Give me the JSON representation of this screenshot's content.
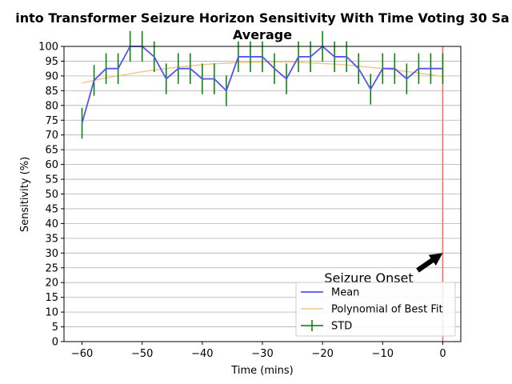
{
  "chart_data": {
    "type": "line",
    "title_line1": "into Transformer Seizure Horizon Sensitivity With Time Voting 30 Sa",
    "title_line2": "Average",
    "xlabel": "Time (mins)",
    "ylabel": "Sensitivity (%)",
    "xlim": [
      -63,
      3
    ],
    "ylim": [
      0,
      100
    ],
    "xticks": [
      -60,
      -50,
      -40,
      -30,
      -20,
      -10,
      0
    ],
    "yticks": [
      0,
      5,
      10,
      15,
      20,
      25,
      30,
      35,
      40,
      45,
      50,
      55,
      60,
      65,
      70,
      75,
      80,
      85,
      90,
      95,
      100
    ],
    "grid": "horizontal",
    "x": [
      -60,
      -58,
      -56,
      -54,
      -52,
      -50,
      -48,
      -46,
      -44,
      -42,
      -40,
      -38,
      -36,
      -34,
      -32,
      -30,
      -28,
      -26,
      -24,
      -22,
      -20,
      -18,
      -16,
      -14,
      -12,
      -10,
      -8,
      -6,
      -4,
      -2,
      0
    ],
    "series": [
      {
        "name": "Mean",
        "color": "#5555ee",
        "values": [
          74,
          88.5,
          92.5,
          92.5,
          100,
          100,
          96.5,
          89,
          92.5,
          92.5,
          89,
          89,
          85,
          96.5,
          96.5,
          96.5,
          92.5,
          89,
          96.5,
          96.5,
          100,
          96.5,
          96.5,
          92.5,
          85.5,
          92.5,
          92.5,
          89,
          92.5,
          92.5,
          92.5
        ]
      },
      {
        "name": "Polynomial of Best Fit",
        "color": "#f0c890",
        "values": [
          87.6,
          88.5,
          89.3,
          90.0,
          90.7,
          91.4,
          92.0,
          92.5,
          93.0,
          93.4,
          93.8,
          94.1,
          94.3,
          94.5,
          94.6,
          94.7,
          94.7,
          94.7,
          94.6,
          94.4,
          94.2,
          94.0,
          93.7,
          93.3,
          92.9,
          92.5,
          92.0,
          91.5,
          91.0,
          90.4,
          89.8
        ]
      },
      {
        "name": "STD",
        "color": "#008000",
        "values": [
          5.2,
          5.2,
          5.2,
          5.2,
          5.2,
          5.2,
          5.2,
          5.2,
          5.2,
          5.2,
          5.2,
          5.2,
          5.2,
          5.2,
          5.2,
          5.2,
          5.2,
          5.2,
          5.2,
          5.2,
          5.2,
          5.2,
          5.2,
          5.2,
          5.2,
          5.2,
          5.2,
          5.2,
          5.2,
          5.2,
          5.2
        ]
      }
    ],
    "onset_line": {
      "x": 0,
      "color": "#ff6666"
    },
    "annotation": {
      "text": "Seizure Onset",
      "arrow_to_x": 0,
      "arrow_to_y": 30
    },
    "legend": {
      "placement": "lower-right",
      "entries": [
        "Mean",
        "Polynomial of Best Fit",
        "STD"
      ]
    }
  }
}
